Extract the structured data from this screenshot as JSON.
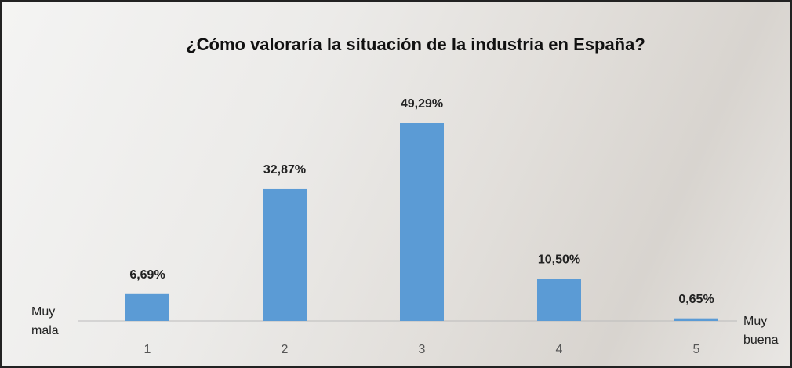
{
  "chart_data": {
    "type": "bar",
    "title": "¿Cómo valoraría la situación de la industria en España?",
    "categories": [
      "1",
      "2",
      "3",
      "4",
      "5"
    ],
    "values": [
      6.69,
      32.87,
      49.29,
      10.5,
      0.65
    ],
    "value_labels": [
      "6,69%",
      "32,87%",
      "49,29%",
      "10,50%",
      "0,65%"
    ],
    "color": "#5b9bd5",
    "annotations": [
      "Muy\nmala",
      "Muy\nbuena"
    ]
  }
}
